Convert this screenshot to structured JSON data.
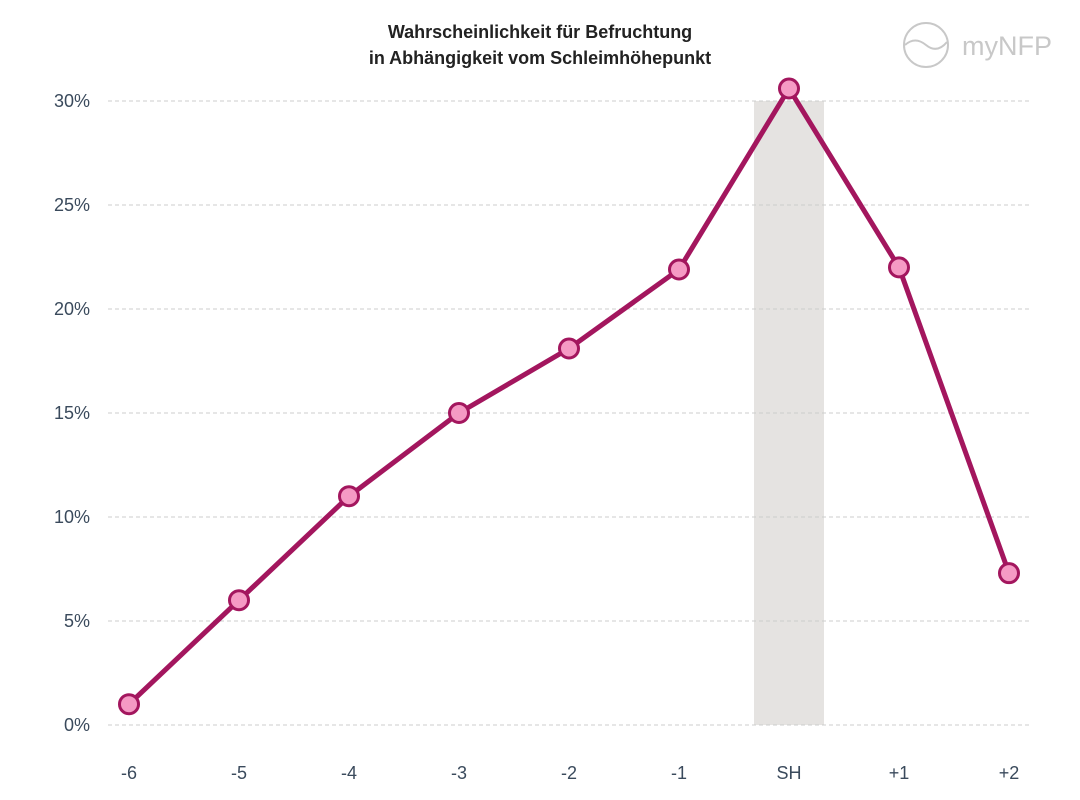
{
  "chart_data": {
    "type": "line",
    "title": [
      "Wahrscheinlichkeit für Befruchtung",
      "in Abhängigkeit vom Schleimhöhepunkt"
    ],
    "categories": [
      "-6",
      "-5",
      "-4",
      "-3",
      "-2",
      "-1",
      "SH",
      "+1",
      "+2"
    ],
    "series": [
      {
        "values": [
          1,
          6,
          11,
          15,
          18.1,
          21.9,
          30.6,
          22,
          7.3
        ]
      }
    ],
    "highlight_category": "SH",
    "ylim": [
      0,
      30
    ],
    "yticks": [
      0,
      5,
      10,
      15,
      20,
      25,
      30
    ],
    "ytick_labels": [
      "0%",
      "5%",
      "10%",
      "15%",
      "20%",
      "25%",
      "30%"
    ],
    "grid": true,
    "legend": "none",
    "colors": {
      "line": "#a3165e",
      "marker_fill": "#f59ac4",
      "highlight_band": "#e5e3e1",
      "grid": "#cccccc",
      "tick_text": "#3a4a5c",
      "title_text": "#222222",
      "logo": "#c8c8c8"
    }
  },
  "logo": {
    "text": "myNFP",
    "icon": "mynfp-logo-icon"
  }
}
